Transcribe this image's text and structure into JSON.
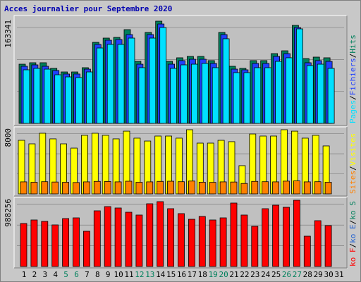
{
  "chart_data": [
    {
      "type": "bar",
      "title": "Acces journalier pour Septembre 2020",
      "ylim": [
        0,
        163341
      ],
      "yticks": [
        163341
      ],
      "legend_separator": "/",
      "series": [
        {
          "name": "Hits",
          "color": "#00805c",
          "values": [
            94600,
            96900,
            96900,
            87900,
            82200,
            82200,
            89000,
            129500,
            136300,
            137400,
            149800,
            99100,
            145300,
            163341,
            99100,
            104800,
            107000,
            107000,
            100300,
            145300,
            91250,
            87900,
            100300,
            100300,
            111500,
            116000,
            156600,
            103600,
            105900,
            104800,
            null
          ]
        },
        {
          "name": "Fichiers",
          "color": "#2040ff",
          "values": [
            91250,
            93500,
            91250,
            84500,
            78900,
            78900,
            86700,
            126200,
            132900,
            134000,
            141900,
            94600,
            141900,
            158800,
            94600,
            100300,
            102500,
            102500,
            95800,
            141900,
            86700,
            85600,
            95800,
            95800,
            107000,
            111500,
            153200,
            96900,
            100300,
            99100,
            null
          ]
        },
        {
          "name": "Pages",
          "color": "#00e0ff",
          "values": [
            85600,
            87900,
            86700,
            77700,
            74300,
            73200,
            82200,
            120500,
            126200,
            126200,
            136300,
            89000,
            136300,
            153200,
            87900,
            93500,
            94600,
            95800,
            89000,
            135200,
            81100,
            81100,
            89000,
            89000,
            99100,
            104800,
            151000,
            92400,
            94600,
            87900,
            null
          ]
        }
      ]
    },
    {
      "type": "bar",
      "ylim": [
        0,
        8000
      ],
      "yticks": [
        8000
      ],
      "legend_separator": "/",
      "series": [
        {
          "name": "Visites",
          "color": "#ffff00",
          "values": [
            6680,
            6240,
            7560,
            6860,
            6240,
            5710,
            7300,
            7560,
            7300,
            6860,
            7820,
            6950,
            6590,
            7210,
            7210,
            6950,
            8000,
            6330,
            6330,
            6680,
            6510,
            3520,
            7470,
            7210,
            7210,
            8000,
            7820,
            6950,
            7300,
            5980,
            null
          ]
        },
        {
          "name": "Sites",
          "color": "#ff8000",
          "values": [
            1500,
            1450,
            1520,
            1480,
            1450,
            1420,
            1500,
            1560,
            1550,
            1500,
            1580,
            1450,
            1500,
            1560,
            1580,
            1520,
            1600,
            1460,
            1440,
            1500,
            1480,
            1300,
            1560,
            1520,
            1500,
            1590,
            1620,
            1500,
            1520,
            1450,
            null
          ]
        }
      ]
    },
    {
      "type": "bar",
      "ylim": [
        0,
        988256
      ],
      "yticks": [
        988256
      ],
      "legend_separator": "/",
      "categories": [
        "1",
        "2",
        "3",
        "4",
        "5",
        "6",
        "7",
        "8",
        "9",
        "10",
        "11",
        "12",
        "13",
        "14",
        "15",
        "16",
        "17",
        "18",
        "19",
        "20",
        "21",
        "22",
        "23",
        "24",
        "25",
        "26",
        "27",
        "28",
        "29",
        "30",
        "31"
      ],
      "category_colors": [
        "#000000",
        "#000000",
        "#000000",
        "#000000",
        "#00805c",
        "#00805c",
        "#000000",
        "#000000",
        "#000000",
        "#000000",
        "#000000",
        "#00805c",
        "#00805c",
        "#000000",
        "#000000",
        "#000000",
        "#000000",
        "#000000",
        "#00805c",
        "#00805c",
        "#000000",
        "#000000",
        "#000000",
        "#000000",
        "#000000",
        "#00805c",
        "#00805c",
        "#000000",
        "#000000",
        "#000000",
        "#000000"
      ],
      "series": [
        {
          "name": "ko F",
          "color": "#ff0000",
          "values": [
            641300,
            693900,
            672800,
            620300,
            714900,
            725400,
            525700,
            830500,
            893600,
            872600,
            809500,
            767500,
            935700,
            967200,
            862100,
            788500,
            704400,
            746400,
            693900,
            725400,
            946200,
            767500,
            599200,
            862100,
            914600,
            883100,
            988256,
            452100,
            683300,
            609800,
            null
          ]
        }
      ],
      "legend_extra": [
        {
          "name": "ko E",
          "color": "#2060d0"
        },
        {
          "name": "ko S",
          "color": "#00805c"
        }
      ]
    }
  ]
}
